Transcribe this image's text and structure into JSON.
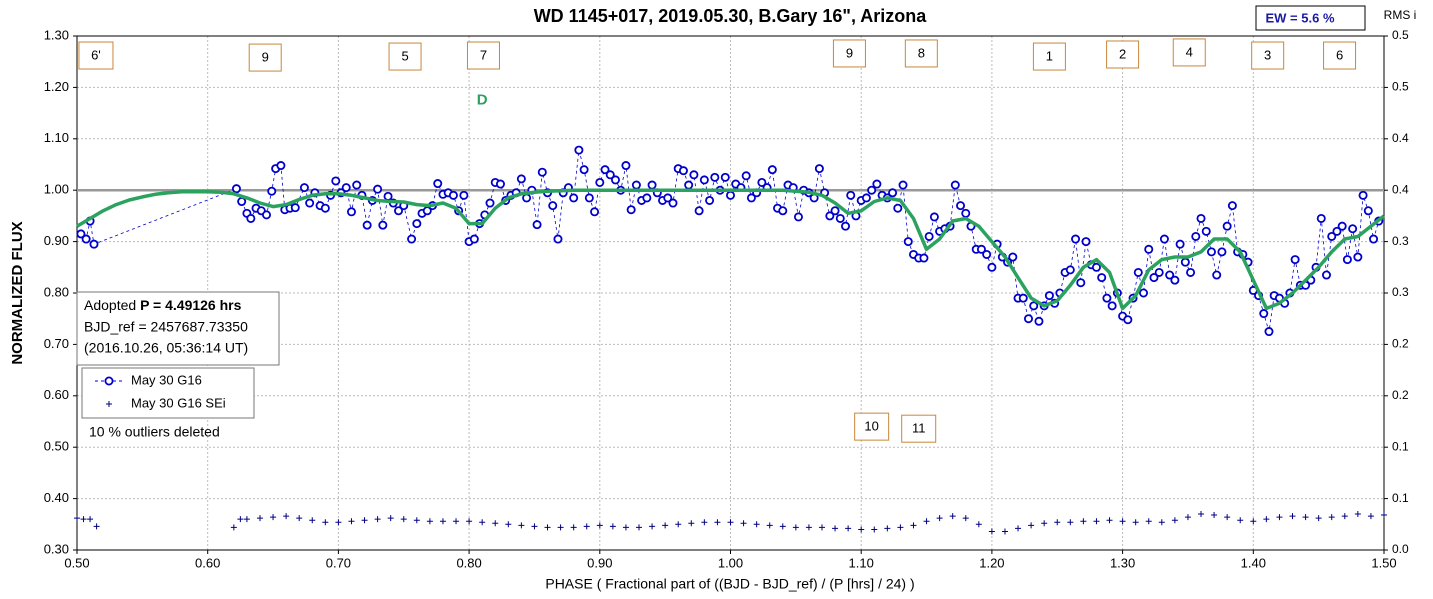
{
  "chart_data": {
    "type": "scatter",
    "title": "WD 1145+017, 2019.05.30, B.Gary 16\", Arizona",
    "xlabel": "PHASE ( Fractional part of ((BJD - BJD_ref) / (P [hrs] / 24) )",
    "ylabel": "NORMALIZED FLUX",
    "y2label": "RMS i",
    "ew_label": "EW =  5.6 %",
    "info": {
      "prefix": "Adopted ",
      "period": "P = 4.49126 hrs",
      "bjd_ref": "BJD_ref = 2457687.73350",
      "date": "(2016.10.26, 05:36:14 UT)"
    },
    "note": "10 % outliers deleted",
    "grid": true,
    "baseline": 1.0,
    "xlim": [
      0.5,
      1.5
    ],
    "ylim": [
      0.3,
      1.3
    ],
    "y2lim": [
      0,
      0.5
    ],
    "xticks": [
      {
        "value": 0.5,
        "label": "0.50"
      },
      {
        "value": 0.6,
        "label": "0.60"
      },
      {
        "value": 0.7,
        "label": "0.70"
      },
      {
        "value": 0.8,
        "label": "0.80"
      },
      {
        "value": 0.9,
        "label": "0.90"
      },
      {
        "value": 1.0,
        "label": "1.00"
      },
      {
        "value": 1.1,
        "label": "1.10"
      },
      {
        "value": 1.2,
        "label": "1.20"
      },
      {
        "value": 1.3,
        "label": "1.30"
      },
      {
        "value": 1.4,
        "label": "1.40"
      },
      {
        "value": 1.5,
        "label": "1.50"
      }
    ],
    "yticks": [
      {
        "value": 0.3,
        "label": "0.30"
      },
      {
        "value": 0.4,
        "label": "0.40"
      },
      {
        "value": 0.5,
        "label": "0.50"
      },
      {
        "value": 0.6,
        "label": "0.60"
      },
      {
        "value": 0.7,
        "label": "0.70"
      },
      {
        "value": 0.8,
        "label": "0.80"
      },
      {
        "value": 0.9,
        "label": "0.90"
      },
      {
        "value": 1.0,
        "label": "1.00"
      },
      {
        "value": 1.1,
        "label": "1.10"
      },
      {
        "value": 1.2,
        "label": "1.20"
      },
      {
        "value": 1.3,
        "label": "1.30"
      }
    ],
    "y2ticks": [
      {
        "value": 0,
        "label": "0.0"
      },
      {
        "value": 0.05,
        "label": "0.1"
      },
      {
        "value": 0.1,
        "label": "0.1"
      },
      {
        "value": 0.15,
        "label": "0.2"
      },
      {
        "value": 0.2,
        "label": "0.2"
      },
      {
        "value": 0.25,
        "label": "0.3"
      },
      {
        "value": 0.3,
        "label": "0.3"
      },
      {
        "value": 0.35,
        "label": "0.4"
      },
      {
        "value": 0.4,
        "label": "0.4"
      },
      {
        "value": 0.45,
        "label": "0.5"
      },
      {
        "value": 0.5,
        "label": "0.5"
      }
    ],
    "series": [
      {
        "name": "May 30 G16",
        "color": "#0000cc",
        "x": [
          0.503,
          0.507,
          0.51,
          0.513,
          0.622,
          0.626,
          0.63,
          0.633,
          0.637,
          0.641,
          0.645,
          0.649,
          0.652,
          0.656,
          0.659,
          0.663,
          0.667,
          0.674,
          0.678,
          0.682,
          0.686,
          0.69,
          0.694,
          0.698,
          0.702,
          0.706,
          0.71,
          0.714,
          0.718,
          0.722,
          0.726,
          0.73,
          0.734,
          0.738,
          0.742,
          0.746,
          0.75,
          0.756,
          0.76,
          0.764,
          0.768,
          0.772,
          0.776,
          0.78,
          0.784,
          0.788,
          0.792,
          0.796,
          0.8,
          0.804,
          0.808,
          0.812,
          0.816,
          0.82,
          0.824,
          0.828,
          0.832,
          0.836,
          0.84,
          0.844,
          0.848,
          0.852,
          0.856,
          0.86,
          0.864,
          0.868,
          0.872,
          0.876,
          0.88,
          0.884,
          0.888,
          0.892,
          0.896,
          0.9,
          0.904,
          0.908,
          0.912,
          0.916,
          0.92,
          0.924,
          0.928,
          0.932,
          0.936,
          0.94,
          0.944,
          0.948,
          0.952,
          0.956,
          0.96,
          0.964,
          0.968,
          0.972,
          0.976,
          0.98,
          0.984,
          0.988,
          0.992,
          0.996,
          1.0,
          1.004,
          1.008,
          1.012,
          1.016,
          1.02,
          1.024,
          1.028,
          1.032,
          1.036,
          1.04,
          1.044,
          1.048,
          1.052,
          1.056,
          1.06,
          1.064,
          1.068,
          1.072,
          1.076,
          1.08,
          1.084,
          1.088,
          1.092,
          1.096,
          1.1,
          1.104,
          1.108,
          1.112,
          1.116,
          1.12,
          1.124,
          1.128,
          1.132,
          1.136,
          1.14,
          1.144,
          1.148,
          1.152,
          1.156,
          1.16,
          1.164,
          1.168,
          1.172,
          1.176,
          1.18,
          1.184,
          1.188,
          1.192,
          1.196,
          1.2,
          1.204,
          1.208,
          1.212,
          1.216,
          1.22,
          1.224,
          1.228,
          1.232,
          1.236,
          1.24,
          1.244,
          1.248,
          1.252,
          1.256,
          1.26,
          1.264,
          1.268,
          1.272,
          1.276,
          1.28,
          1.284,
          1.288,
          1.292,
          1.296,
          1.3,
          1.304,
          1.308,
          1.312,
          1.316,
          1.32,
          1.324,
          1.328,
          1.332,
          1.336,
          1.34,
          1.344,
          1.348,
          1.352,
          1.356,
          1.36,
          1.364,
          1.368,
          1.372,
          1.376,
          1.38,
          1.384,
          1.388,
          1.392,
          1.396,
          1.4,
          1.404,
          1.408,
          1.412,
          1.416,
          1.42,
          1.424,
          1.428,
          1.432,
          1.436,
          1.44,
          1.444,
          1.448,
          1.452,
          1.456,
          1.46,
          1.464,
          1.468,
          1.472,
          1.476,
          1.48,
          1.484,
          1.488,
          1.492,
          1.496
        ],
        "values": [
          0.915,
          0.905,
          0.94,
          0.895,
          1.003,
          0.978,
          0.955,
          0.945,
          0.965,
          0.96,
          0.952,
          0.998,
          1.042,
          1.048,
          0.962,
          0.965,
          0.966,
          1.005,
          0.975,
          0.995,
          0.97,
          0.965,
          0.99,
          1.018,
          0.995,
          1.005,
          0.958,
          1.01,
          0.99,
          0.932,
          0.98,
          1.002,
          0.932,
          0.988,
          0.975,
          0.96,
          0.97,
          0.905,
          0.935,
          0.955,
          0.96,
          0.97,
          1.013,
          0.992,
          0.995,
          0.99,
          0.96,
          0.99,
          0.9,
          0.905,
          0.935,
          0.952,
          0.975,
          1.015,
          1.012,
          0.98,
          0.99,
          0.995,
          1.022,
          0.985,
          1.0,
          0.933,
          1.035,
          0.995,
          0.97,
          0.905,
          0.995,
          1.005,
          0.985,
          1.078,
          1.04,
          0.985,
          0.958,
          1.015,
          1.04,
          1.03,
          1.02,
          1.0,
          1.048,
          0.962,
          1.01,
          0.98,
          0.985,
          1.01,
          0.995,
          0.98,
          0.985,
          0.975,
          1.042,
          1.038,
          1.01,
          1.03,
          0.96,
          1.02,
          0.98,
          1.025,
          1.0,
          1.025,
          0.99,
          1.012,
          1.005,
          1.028,
          0.985,
          0.995,
          1.015,
          1.005,
          1.04,
          0.965,
          0.96,
          1.01,
          1.005,
          0.948,
          1.0,
          0.995,
          0.985,
          1.042,
          0.995,
          0.95,
          0.96,
          0.945,
          0.93,
          0.99,
          0.95,
          0.98,
          0.985,
          1.0,
          1.012,
          0.99,
          0.985,
          0.995,
          0.965,
          1.01,
          0.9,
          0.875,
          0.868,
          0.868,
          0.91,
          0.948,
          0.92,
          0.925,
          0.93,
          1.01,
          0.97,
          0.955,
          0.93,
          0.885,
          0.885,
          0.875,
          0.85,
          0.895,
          0.87,
          0.86,
          0.87,
          0.79,
          0.79,
          0.75,
          0.775,
          0.745,
          0.775,
          0.795,
          0.78,
          0.8,
          0.84,
          0.845,
          0.905,
          0.82,
          0.9,
          0.855,
          0.85,
          0.83,
          0.79,
          0.775,
          0.8,
          0.755,
          0.748,
          0.79,
          0.84,
          0.8,
          0.885,
          0.83,
          0.84,
          0.905,
          0.835,
          0.825,
          0.895,
          0.86,
          0.84,
          0.91,
          0.945,
          0.92,
          0.88,
          0.835,
          0.88,
          0.93,
          0.97,
          0.88,
          0.875,
          0.86,
          0.805,
          0.795,
          0.76,
          0.725,
          0.795,
          0.79,
          0.78,
          0.8,
          0.865,
          0.815,
          0.815,
          0.825,
          0.85,
          0.945,
          0.835,
          0.91,
          0.92,
          0.93,
          0.865,
          0.925,
          0.87,
          0.99,
          0.96,
          0.905,
          0.94
        ]
      },
      {
        "name": "May 30 G16 SEi",
        "color": "#000080",
        "axis": "y2",
        "x": [
          0.5,
          0.505,
          0.51,
          0.515,
          0.62,
          0.625,
          0.63,
          0.64,
          0.65,
          0.66,
          0.67,
          0.68,
          0.69,
          0.7,
          0.71,
          0.72,
          0.73,
          0.74,
          0.75,
          0.76,
          0.77,
          0.78,
          0.79,
          0.8,
          0.81,
          0.82,
          0.83,
          0.84,
          0.85,
          0.86,
          0.87,
          0.88,
          0.89,
          0.9,
          0.91,
          0.92,
          0.93,
          0.94,
          0.95,
          0.96,
          0.97,
          0.98,
          0.99,
          1.0,
          1.01,
          1.02,
          1.03,
          1.04,
          1.05,
          1.06,
          1.07,
          1.08,
          1.09,
          1.1,
          1.11,
          1.12,
          1.13,
          1.14,
          1.15,
          1.16,
          1.17,
          1.18,
          1.19,
          1.2,
          1.21,
          1.22,
          1.23,
          1.24,
          1.25,
          1.26,
          1.27,
          1.28,
          1.29,
          1.3,
          1.31,
          1.32,
          1.33,
          1.34,
          1.35,
          1.36,
          1.37,
          1.38,
          1.39,
          1.4,
          1.41,
          1.42,
          1.43,
          1.44,
          1.45,
          1.46,
          1.47,
          1.48,
          1.49,
          1.5
        ],
        "values": [
          0.031,
          0.03,
          0.03,
          0.023,
          0.022,
          0.03,
          0.03,
          0.031,
          0.032,
          0.033,
          0.031,
          0.029,
          0.027,
          0.027,
          0.028,
          0.029,
          0.03,
          0.031,
          0.03,
          0.029,
          0.028,
          0.028,
          0.028,
          0.028,
          0.027,
          0.026,
          0.025,
          0.024,
          0.023,
          0.022,
          0.022,
          0.022,
          0.023,
          0.024,
          0.023,
          0.022,
          0.022,
          0.023,
          0.024,
          0.025,
          0.026,
          0.027,
          0.027,
          0.027,
          0.026,
          0.025,
          0.024,
          0.023,
          0.022,
          0.022,
          0.022,
          0.021,
          0.021,
          0.02,
          0.02,
          0.021,
          0.022,
          0.024,
          0.028,
          0.031,
          0.033,
          0.031,
          0.025,
          0.018,
          0.018,
          0.021,
          0.024,
          0.026,
          0.027,
          0.027,
          0.028,
          0.028,
          0.029,
          0.028,
          0.027,
          0.028,
          0.027,
          0.029,
          0.032,
          0.035,
          0.034,
          0.032,
          0.029,
          0.028,
          0.03,
          0.032,
          0.033,
          0.032,
          0.031,
          0.032,
          0.033,
          0.035,
          0.033,
          0.034
        ]
      }
    ],
    "fit": {
      "color": "#2ca25f",
      "x": [
        0.5,
        0.51,
        0.52,
        0.53,
        0.54,
        0.55,
        0.56,
        0.57,
        0.58,
        0.59,
        0.6,
        0.61,
        0.62,
        0.63,
        0.64,
        0.65,
        0.66,
        0.67,
        0.68,
        0.69,
        0.7,
        0.71,
        0.72,
        0.73,
        0.74,
        0.75,
        0.76,
        0.77,
        0.78,
        0.79,
        0.8,
        0.81,
        0.82,
        0.83,
        0.84,
        0.85,
        0.86,
        0.87,
        0.88,
        0.89,
        0.9,
        0.91,
        0.92,
        0.93,
        0.94,
        0.95,
        0.96,
        0.97,
        0.98,
        0.99,
        1.0,
        1.01,
        1.02,
        1.03,
        1.04,
        1.05,
        1.06,
        1.07,
        1.08,
        1.09,
        1.1,
        1.11,
        1.12,
        1.13,
        1.14,
        1.15,
        1.16,
        1.17,
        1.18,
        1.19,
        1.2,
        1.21,
        1.22,
        1.23,
        1.24,
        1.25,
        1.26,
        1.27,
        1.28,
        1.29,
        1.3,
        1.31,
        1.32,
        1.33,
        1.34,
        1.35,
        1.36,
        1.37,
        1.38,
        1.39,
        1.4,
        1.41,
        1.42,
        1.43,
        1.44,
        1.45,
        1.46,
        1.47,
        1.48,
        1.49,
        1.5
      ],
      "values": [
        0.93,
        0.945,
        0.96,
        0.972,
        0.981,
        0.987,
        0.992,
        0.995,
        0.997,
        0.997,
        0.997,
        0.996,
        0.993,
        0.985,
        0.975,
        0.968,
        0.972,
        0.982,
        0.99,
        0.993,
        0.993,
        0.99,
        0.985,
        0.98,
        0.978,
        0.977,
        0.972,
        0.97,
        0.975,
        0.965,
        0.935,
        0.935,
        0.965,
        0.985,
        0.993,
        0.996,
        0.998,
        0.999,
        1.0,
        1.0,
        1.0,
        1.0,
        1.0,
        1.0,
        1.0,
        1.0,
        1.0,
        1.0,
        1.0,
        1.0,
        1.0,
        1.0,
        1.0,
        1.0,
        1.0,
        0.998,
        0.996,
        0.99,
        0.975,
        0.955,
        0.96,
        0.978,
        0.985,
        0.98,
        0.945,
        0.885,
        0.905,
        0.94,
        0.945,
        0.93,
        0.9,
        0.87,
        0.83,
        0.79,
        0.775,
        0.785,
        0.815,
        0.85,
        0.865,
        0.84,
        0.77,
        0.795,
        0.845,
        0.865,
        0.87,
        0.87,
        0.88,
        0.905,
        0.905,
        0.88,
        0.825,
        0.77,
        0.78,
        0.8,
        0.825,
        0.85,
        0.88,
        0.905,
        0.91,
        0.93,
        0.95
      ]
    },
    "fit_label": {
      "text": "D",
      "x": 0.81,
      "y": 1.174
    },
    "annotations": [
      {
        "text": "6'",
        "x": 0.5145,
        "y": 1.263
      },
      {
        "text": "9",
        "x": 0.644,
        "y": 1.259
      },
      {
        "text": "5",
        "x": 0.751,
        "y": 1.261
      },
      {
        "text": "7",
        "x": 0.811,
        "y": 1.263
      },
      {
        "text": "9",
        "x": 1.091,
        "y": 1.267
      },
      {
        "text": "8",
        "x": 1.146,
        "y": 1.267
      },
      {
        "text": "1",
        "x": 1.244,
        "y": 1.261
      },
      {
        "text": "2",
        "x": 1.3,
        "y": 1.265
      },
      {
        "text": "4",
        "x": 1.351,
        "y": 1.269
      },
      {
        "text": "3",
        "x": 1.411,
        "y": 1.263
      },
      {
        "text": "6",
        "x": 1.466,
        "y": 1.263
      },
      {
        "text": "10",
        "x": 1.108,
        "y": 0.541
      },
      {
        "text": "11",
        "x": 1.144,
        "y": 0.537
      }
    ]
  }
}
